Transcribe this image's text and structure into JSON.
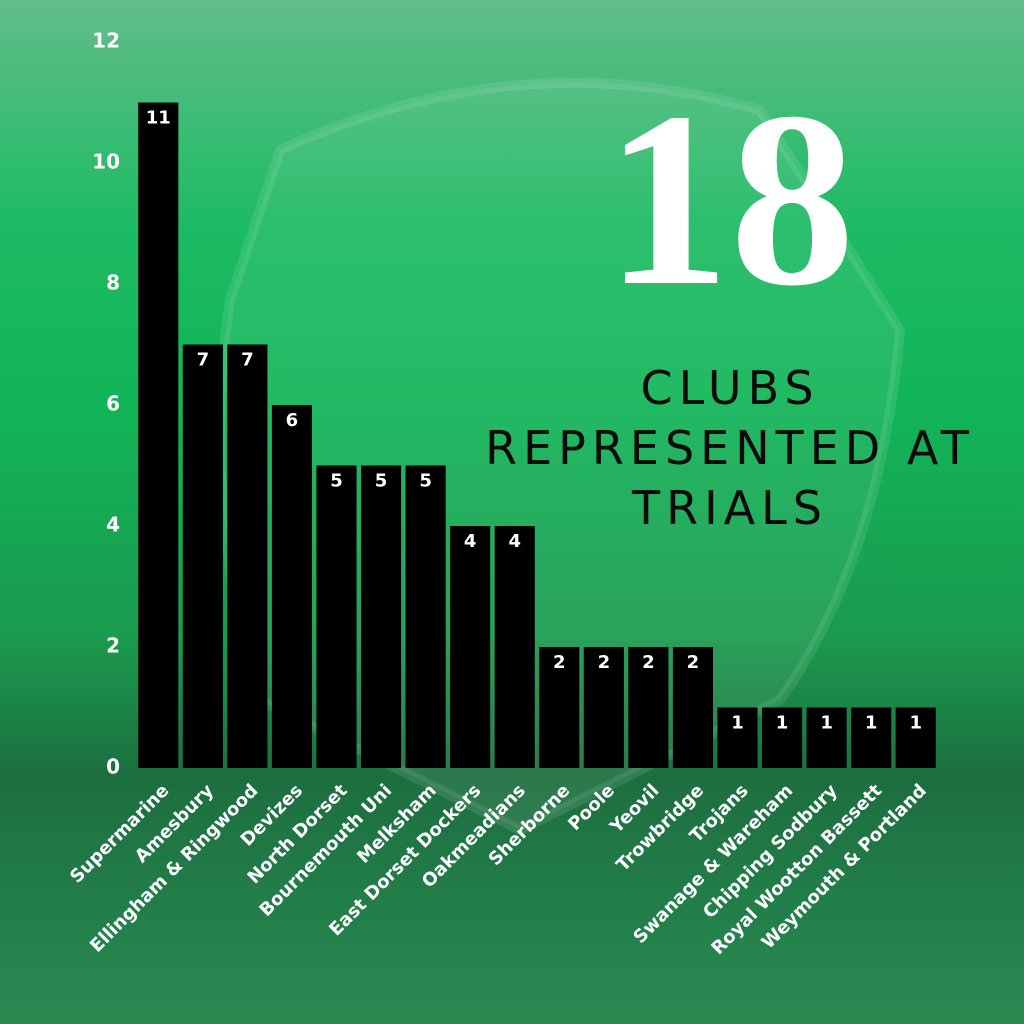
{
  "chart_data": {
    "type": "bar",
    "headline": "18",
    "subtitle_lines": [
      "CLUBS",
      "REPRESENTED AT",
      "TRIALS"
    ],
    "categories": [
      "Supermarine",
      "Amesbury",
      "Ellingham & Ringwood",
      "Devizes",
      "North Dorset",
      "Bournemouth Uni",
      "Melksham",
      "East Dorset Dockers",
      "Oakmeadians",
      "Sherborne",
      "Poole",
      "Yeovil",
      "Trowbridge",
      "Trojans",
      "Swanage & Wareham",
      "Chipping Sodbury",
      "Royal Wootton Bassett",
      "Weymouth & Portland"
    ],
    "values": [
      11,
      7,
      7,
      6,
      5,
      5,
      5,
      4,
      4,
      2,
      2,
      2,
      2,
      1,
      1,
      1,
      1,
      1
    ],
    "color": "#000000",
    "ylim": [
      0,
      12
    ],
    "yticks": [
      0,
      2,
      4,
      6,
      8,
      10,
      12
    ],
    "grid": false
  }
}
